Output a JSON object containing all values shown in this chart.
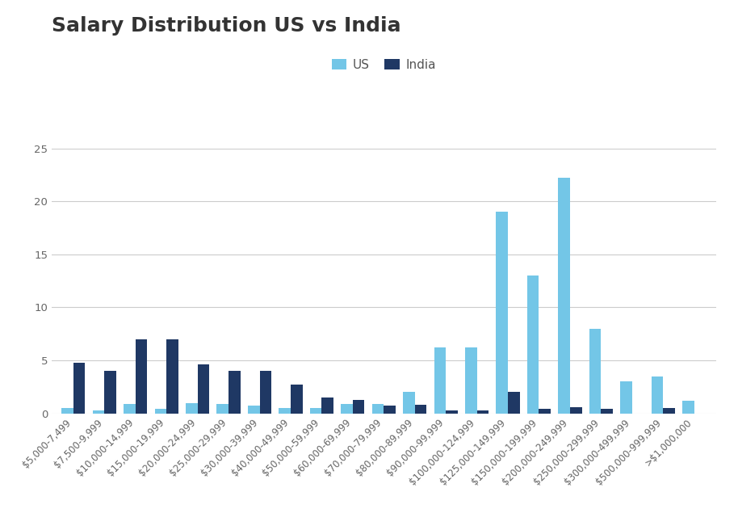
{
  "title": "Salary Distribution US vs India",
  "categories": [
    "$5,000-7,499",
    "$7,500-9,999",
    "$10,000-14,999",
    "$15,000-19,999",
    "$20,000-24,999",
    "$25,000-29,999",
    "$30,000-39,999",
    "$40,000-49,999",
    "$50,000-59,999",
    "$60,000-69,999",
    "$70,000-79,999",
    "$80,000-89,999",
    "$90,000-99,999",
    "$100,000-124,999",
    "$125,000-149,999",
    "$150,000-199,999",
    "$200,000-249,999",
    "$250,000-299,999",
    "$300,000-499,999",
    "$500,000-999,999",
    ">$1,000,000"
  ],
  "us_values": [
    0.5,
    0.3,
    0.9,
    0.4,
    1.0,
    0.9,
    0.7,
    0.5,
    0.5,
    0.9,
    0.9,
    2.0,
    6.2,
    6.2,
    19.0,
    13.0,
    22.2,
    8.0,
    3.0,
    3.5,
    1.2
  ],
  "india_values": [
    4.8,
    4.0,
    7.0,
    7.0,
    4.6,
    4.0,
    4.0,
    2.7,
    1.5,
    1.3,
    0.7,
    0.8,
    0.3,
    0.3,
    2.0,
    0.4,
    0.6,
    0.4,
    0.0,
    0.5,
    0.0
  ],
  "us_color": "#73C6E7",
  "india_color": "#1F3864",
  "background_color": "#FFFFFF",
  "grid_color": "#CCCCCC",
  "ylim": [
    0,
    25
  ],
  "yticks": [
    0,
    5,
    10,
    15,
    20,
    25
  ],
  "legend_labels": [
    "US",
    "India"
  ],
  "title_fontsize": 18,
  "tick_fontsize": 8.5
}
